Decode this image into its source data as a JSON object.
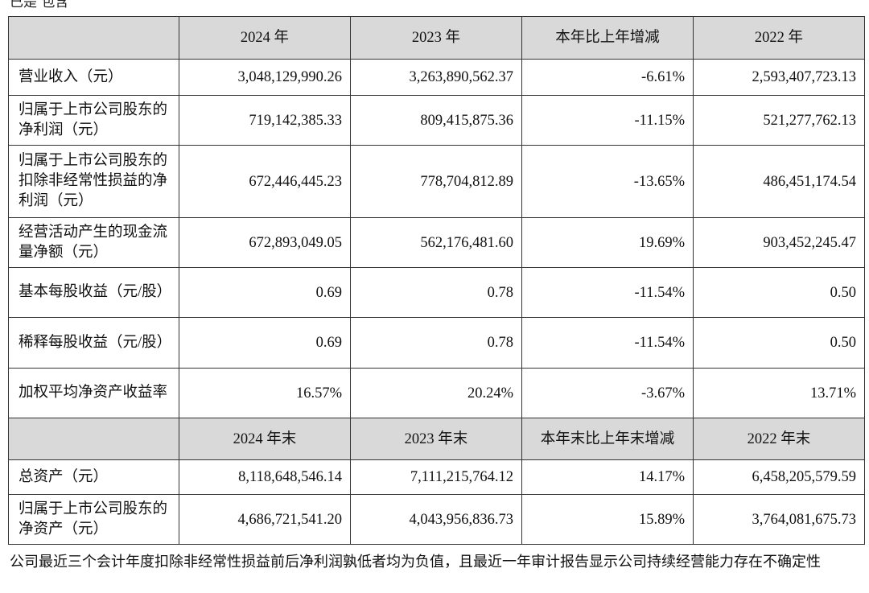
{
  "top_fragment": "已是 包含",
  "headers_year": [
    "",
    "2024 年",
    "2023 年",
    "本年比上年增减",
    "2022 年"
  ],
  "headers_end": [
    "",
    "2024 年末",
    "2023 年末",
    "本年末比上年末增减",
    "2022 年末"
  ],
  "rows_year": [
    {
      "label": "营业收入（元）",
      "v2024": "3,048,129,990.26",
      "v2023": "3,263,890,562.37",
      "change": "-6.61%",
      "v2022": "2,593,407,723.13"
    },
    {
      "label": "归属于上市公司股东的净利润（元）",
      "v2024": "719,142,385.33",
      "v2023": "809,415,875.36",
      "change": "-11.15%",
      "v2022": "521,277,762.13"
    },
    {
      "label": "归属于上市公司股东的扣除非经常性损益的净利润（元）",
      "v2024": "672,446,445.23",
      "v2023": "778,704,812.89",
      "change": "-13.65%",
      "v2022": "486,451,174.54"
    },
    {
      "label": "经营活动产生的现金流量净额（元）",
      "v2024": "672,893,049.05",
      "v2023": "562,176,481.60",
      "change": "19.69%",
      "v2022": "903,452,245.47"
    },
    {
      "label": "基本每股收益（元/股）",
      "v2024": "0.69",
      "v2023": "0.78",
      "change": "-11.54%",
      "v2022": "0.50"
    },
    {
      "label": "稀释每股收益（元/股）",
      "v2024": "0.69",
      "v2023": "0.78",
      "change": "-11.54%",
      "v2022": "0.50"
    },
    {
      "label": "加权平均净资产收益率",
      "v2024": "16.57%",
      "v2023": "20.24%",
      "change": "-3.67%",
      "v2022": "13.71%"
    }
  ],
  "rows_end": [
    {
      "label": "总资产（元）",
      "v2024": "8,118,648,546.14",
      "v2023": "7,111,215,764.12",
      "change": "14.17%",
      "v2022": "6,458,205,579.59"
    },
    {
      "label": "归属于上市公司股东的净资产（元）",
      "v2024": "4,686,721,541.20",
      "v2023": "4,043,956,836.73",
      "change": "15.89%",
      "v2022": "3,764,081,675.73"
    }
  ],
  "footnote": "公司最近三个会计年度扣除非经常性损益前后净利润孰低者均为负值，且最近一年审计报告显示公司持续经营能力存在不确定性"
}
